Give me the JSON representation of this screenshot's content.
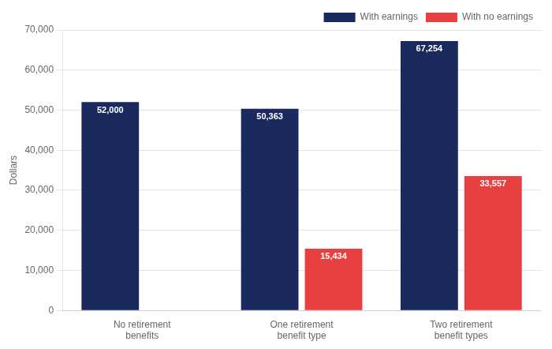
{
  "chart_data": {
    "type": "bar",
    "categories": [
      "No retirement\nbenefits",
      "One retirement\nbenefit type",
      "Two retirement\nbenefit types"
    ],
    "series": [
      {
        "name": "With earnings",
        "color": "#1a2a5e",
        "values": [
          52000,
          50363,
          67254
        ],
        "value_labels": [
          "52,000",
          "50,363",
          "67,254"
        ]
      },
      {
        "name": "With no earnings",
        "color": "#e84040",
        "values": [
          0,
          15434,
          33557
        ],
        "value_labels": [
          null,
          "15,434",
          "33,557"
        ]
      }
    ],
    "ylabel": "Dollars",
    "ylim": [
      0,
      70000
    ],
    "yticks": [
      0,
      {
        "value": 10000,
        "label": "10,000"
      },
      {
        "value": 20000,
        "label": "20,000"
      },
      {
        "value": 30000,
        "label": "30,000"
      },
      {
        "value": 40000,
        "label": "40,000"
      },
      {
        "value": 50000,
        "label": "50,000"
      },
      {
        "value": 60000,
        "label": "60,000"
      },
      {
        "value": 70000,
        "label": "70,000"
      }
    ],
    "grid": true,
    "legend": "upper right",
    "data_labels": true
  }
}
